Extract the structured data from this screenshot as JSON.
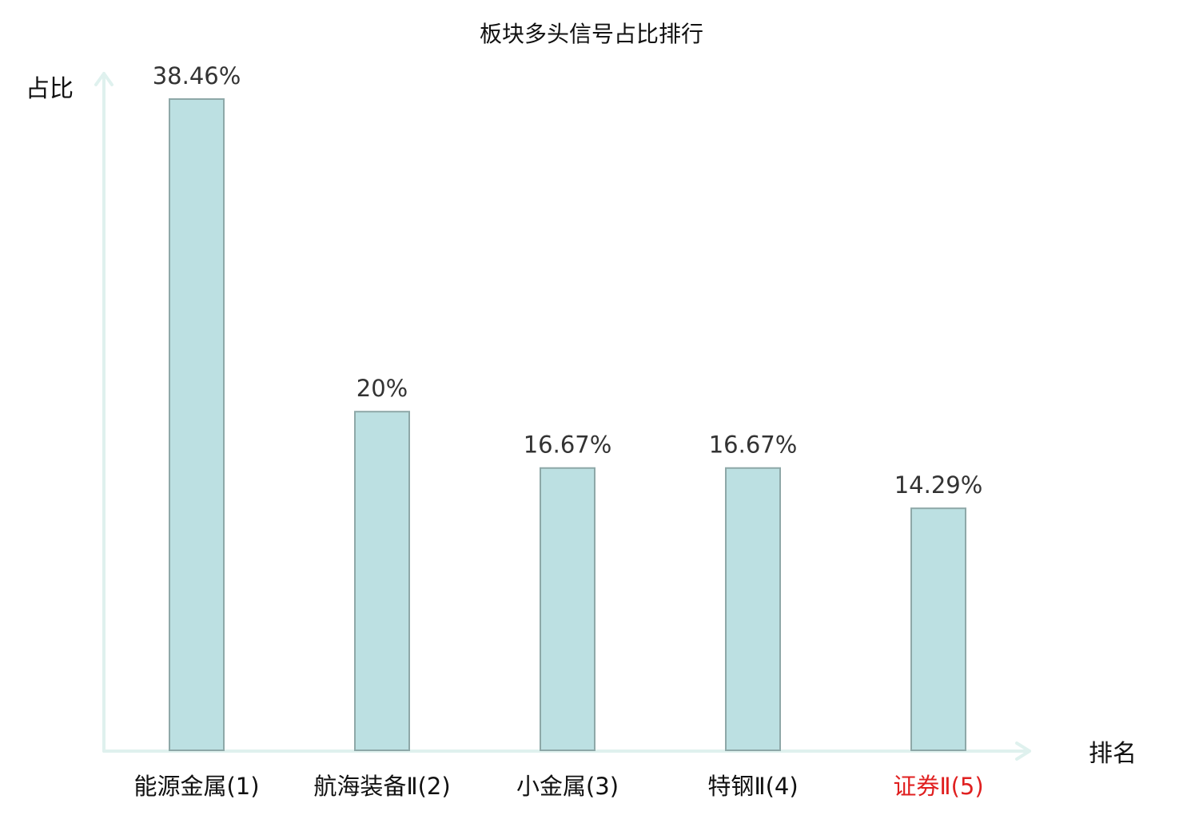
{
  "chart_data": {
    "type": "bar",
    "title": "板块多头信号占比排行",
    "ylabel": "占比",
    "xlabel": "排名",
    "categories": [
      {
        "name": "能源金属",
        "rank": "(1)",
        "highlight": false
      },
      {
        "name": "航海装备Ⅱ",
        "rank": "(2)",
        "highlight": false
      },
      {
        "name": "小金属",
        "rank": "(3)",
        "highlight": false
      },
      {
        "name": "特钢Ⅱ",
        "rank": "(4)",
        "highlight": false
      },
      {
        "name": "证券Ⅱ",
        "rank": "(5)",
        "highlight": true
      }
    ],
    "values": [
      38.46,
      20,
      16.67,
      16.67,
      14.29
    ],
    "value_labels": [
      "38.46%",
      "20%",
      "16.67%",
      "16.67%",
      "14.29%"
    ],
    "ylim": [
      0,
      38.46
    ],
    "grid": false,
    "legend": "none"
  },
  "colors": {
    "bar_fill": "#bce0e2",
    "bar_stroke": "#8ea8a8",
    "axis": "#dff1ee",
    "highlight_text": "#e02020",
    "normal_text": "#111111",
    "value_text": "#333333"
  }
}
